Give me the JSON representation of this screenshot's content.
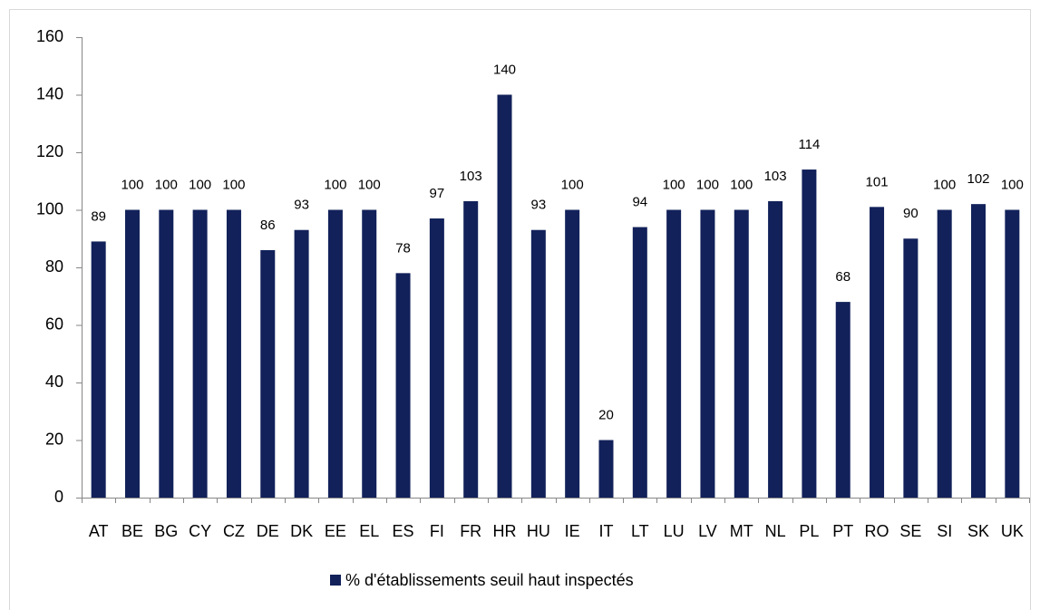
{
  "chart_data": {
    "type": "bar",
    "categories": [
      "AT",
      "BE",
      "BG",
      "CY",
      "CZ",
      "DE",
      "DK",
      "EE",
      "EL",
      "ES",
      "FI",
      "FR",
      "HR",
      "HU",
      "IE",
      "IT",
      "LT",
      "LU",
      "LV",
      "MT",
      "NL",
      "PL",
      "PT",
      "RO",
      "SE",
      "SI",
      "SK",
      "UK"
    ],
    "series": [
      {
        "name": "% d'établissements seuil haut inspectés",
        "color": "#12215a",
        "values": [
          89,
          100,
          100,
          100,
          100,
          86,
          93,
          100,
          100,
          78,
          97,
          103,
          140,
          93,
          100,
          20,
          94,
          100,
          100,
          100,
          103,
          114,
          68,
          101,
          90,
          100,
          102,
          100
        ]
      }
    ],
    "ylim": [
      0,
      160
    ],
    "yticks": [
      0,
      20,
      40,
      60,
      80,
      100,
      120,
      140,
      160
    ],
    "grid": false,
    "legend": "bottom"
  }
}
